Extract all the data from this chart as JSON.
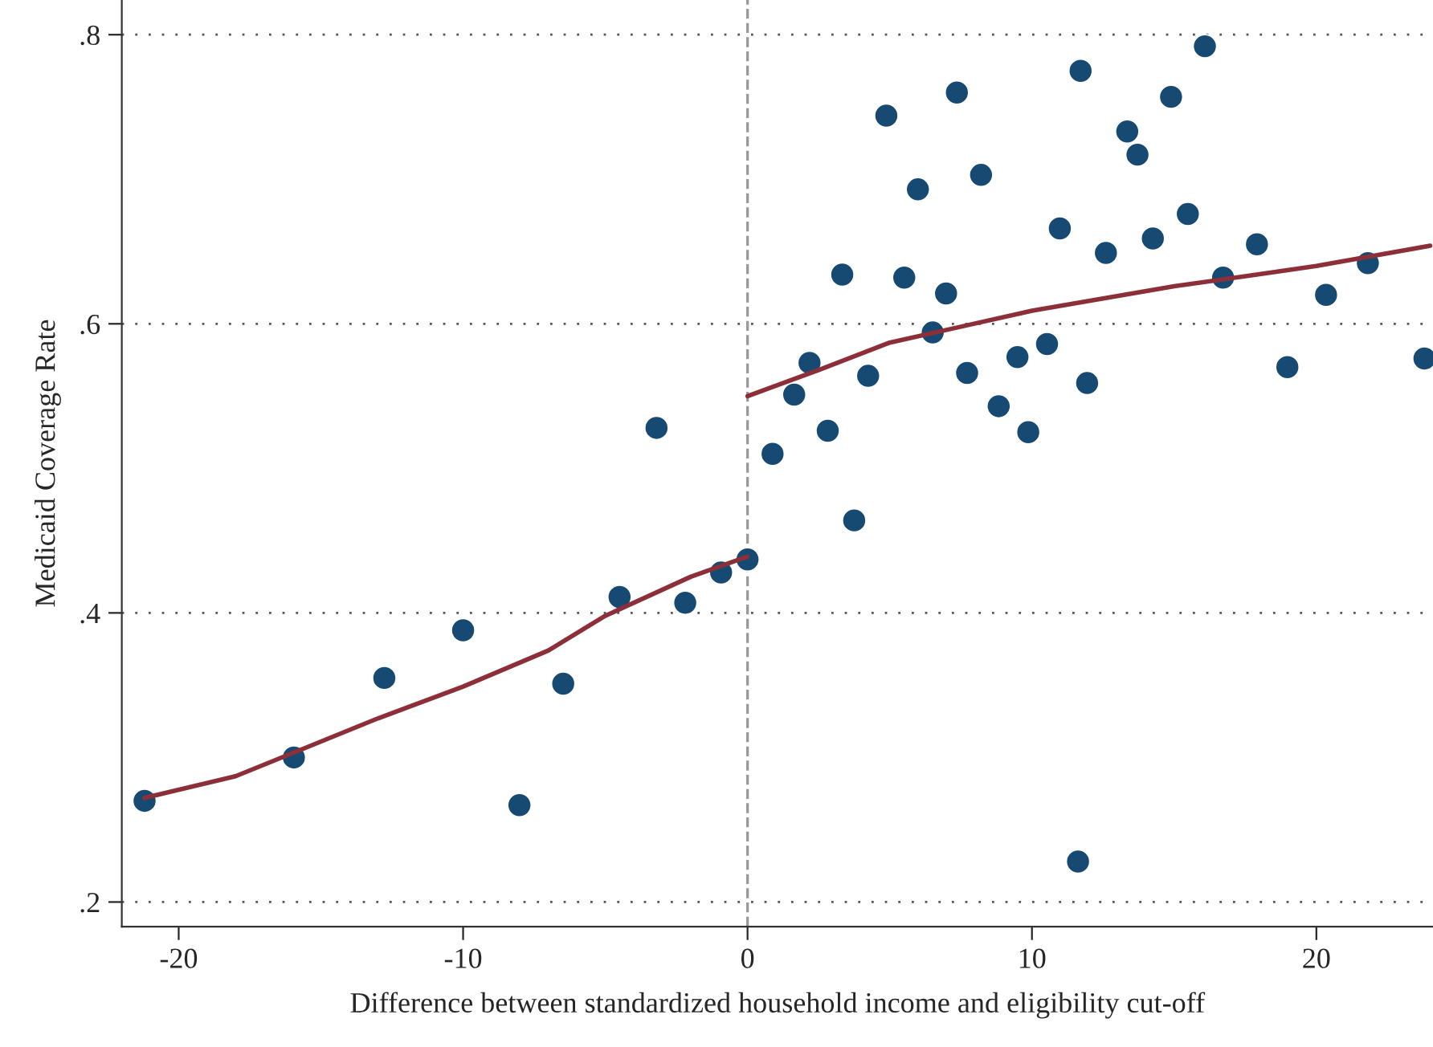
{
  "chart_data": {
    "type": "scatter",
    "xlabel": "Difference between standardized household income and eligibility cut-off",
    "ylabel": "Medicaid Coverage Rate",
    "series": [
      {
        "color": "#174a72",
        "marker": "circle",
        "x": [
          -21.2,
          -15.95,
          -12.77,
          -10.0,
          -8.02,
          -6.48,
          -4.5,
          -3.2,
          -2.19,
          -0.93,
          0,
          0.88,
          1.64,
          2.18,
          2.82,
          3.33,
          3.75,
          4.24,
          4.88,
          5.51,
          5.99,
          6.51,
          6.98,
          7.36,
          7.72,
          8.21,
          8.83,
          9.49,
          9.87,
          10.53,
          10.98,
          11.62,
          11.71,
          11.94,
          12.6,
          13.35,
          13.71,
          14.25,
          14.89,
          15.48,
          16.08,
          16.72,
          17.91,
          18.98,
          20.34,
          21.81,
          23.8
        ],
        "values": [
          0.27,
          0.3,
          0.355,
          0.388,
          0.267,
          0.351,
          0.411,
          0.528,
          0.407,
          0.428,
          0.437,
          0.51,
          0.551,
          0.573,
          0.526,
          0.634,
          0.464,
          0.564,
          0.744,
          0.632,
          0.693,
          0.594,
          0.621,
          0.76,
          0.566,
          0.703,
          0.543,
          0.577,
          0.525,
          0.586,
          0.666,
          0.228,
          0.775,
          0.559,
          0.649,
          0.733,
          0.717,
          0.659,
          0.757,
          0.676,
          0.792,
          0.632,
          0.655,
          0.57,
          0.62,
          0.642,
          0.576
        ]
      },
      {
        "type": "line",
        "color": "#8c2f39",
        "line_style": "solid",
        "x": [
          -21.2,
          -18,
          -16,
          -13,
          -10,
          -7,
          -5,
          -2,
          0
        ],
        "values": [
          0.272,
          0.287,
          0.303,
          0.327,
          0.349,
          0.374,
          0.398,
          0.425,
          0.439
        ]
      },
      {
        "type": "line",
        "color": "#8c2f39",
        "line_style": "solid",
        "x": [
          0,
          2.5,
          5,
          7.5,
          10,
          15,
          17.9,
          20,
          24
        ],
        "values": [
          0.55,
          0.568,
          0.587,
          0.598,
          0.609,
          0.626,
          0.634,
          0.64,
          0.654
        ]
      }
    ],
    "xlim": [
      -22,
      24.1
    ],
    "ylim": [
      0.183,
      0.824
    ],
    "xticks": [
      -20,
      -10,
      0,
      10,
      20
    ],
    "yticks": [
      {
        "value": 0.2,
        "label": ".2"
      },
      {
        "value": 0.4,
        "label": ".4"
      },
      {
        "value": 0.6,
        "label": ".6"
      },
      {
        "value": 0.8,
        "label": ".8"
      }
    ],
    "grid": "y",
    "ref_lines": [
      {
        "axis": "x",
        "value": 0,
        "label": null,
        "color": "#999999",
        "line_style": "dashed"
      }
    ]
  }
}
